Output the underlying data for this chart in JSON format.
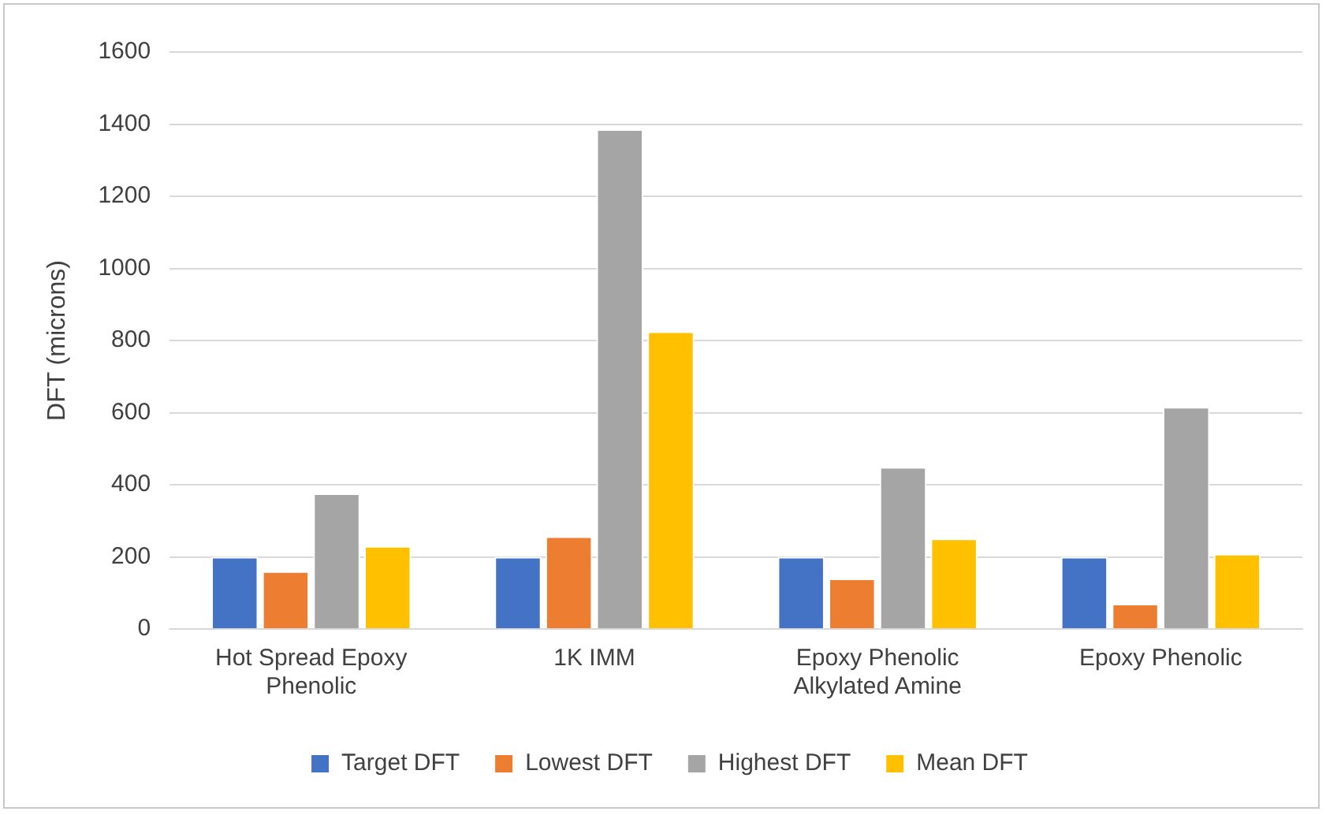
{
  "chart_data": {
    "type": "bar",
    "ylabel": "DFT (microns)",
    "categories": [
      "Hot Spread Epoxy Phenolic",
      "1K IMM",
      "Epoxy Phenolic Alkylated Amine",
      "Epoxy Phenolic"
    ],
    "series": [
      {
        "name": "Target DFT",
        "color": "#4472c4",
        "values": [
          200,
          200,
          200,
          200
        ]
      },
      {
        "name": "Lowest DFT",
        "color": "#ed7d31",
        "values": [
          160,
          257,
          140,
          70
        ]
      },
      {
        "name": "Highest DFT",
        "color": "#a5a5a5",
        "values": [
          376,
          1386,
          449,
          616
        ]
      },
      {
        "name": "Mean DFT",
        "color": "#ffc000",
        "values": [
          230,
          825,
          251,
          208
        ]
      }
    ],
    "ylim": [
      0,
      1600
    ],
    "yticks": [
      0,
      200,
      400,
      600,
      800,
      1000,
      1200,
      1400,
      1600
    ],
    "grid": "y",
    "legend": "bottom"
  }
}
